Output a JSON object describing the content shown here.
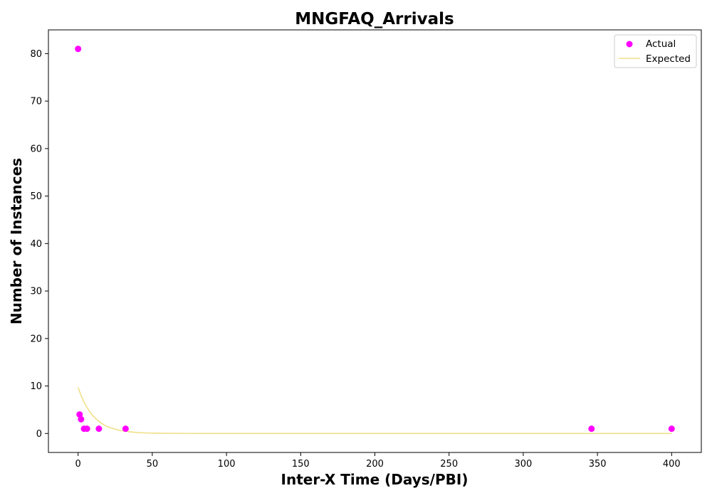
{
  "chart_data": {
    "type": "scatter",
    "title": "MNGFAQ_Arrivals",
    "xlabel": "Inter-X Time (Days/PBI)",
    "ylabel": "Number of Instances",
    "xlim": [
      -20,
      420
    ],
    "ylim": [
      -4,
      85
    ],
    "x_ticks": [
      0,
      50,
      100,
      150,
      200,
      250,
      300,
      350,
      400
    ],
    "y_ticks": [
      0,
      10,
      20,
      30,
      40,
      50,
      60,
      70,
      80
    ],
    "grid": false,
    "legend_position": "top-right",
    "series": [
      {
        "name": "Actual",
        "kind": "scatter",
        "color": "#ff00ff",
        "points": [
          [
            0,
            81
          ],
          [
            1,
            4
          ],
          [
            2,
            3
          ],
          [
            4,
            1
          ],
          [
            6,
            1
          ],
          [
            14,
            1
          ],
          [
            32,
            1
          ],
          [
            346,
            1
          ],
          [
            400,
            1
          ]
        ]
      },
      {
        "name": "Expected",
        "kind": "line",
        "color": "#f0e08a",
        "points": [
          [
            0,
            9.7
          ],
          [
            2,
            8.0
          ],
          [
            4,
            6.6
          ],
          [
            6,
            5.5
          ],
          [
            8,
            4.5
          ],
          [
            10,
            3.7
          ],
          [
            12,
            3.1
          ],
          [
            15,
            2.3
          ],
          [
            18,
            1.7
          ],
          [
            20,
            1.4
          ],
          [
            25,
            0.9
          ],
          [
            30,
            0.55
          ],
          [
            35,
            0.33
          ],
          [
            40,
            0.2
          ],
          [
            45,
            0.12
          ],
          [
            50,
            0.07
          ],
          [
            60,
            0.03
          ],
          [
            70,
            0.01
          ],
          [
            80,
            0
          ],
          [
            100,
            0
          ],
          [
            150,
            0
          ],
          [
            200,
            0
          ],
          [
            250,
            0
          ],
          [
            300,
            0
          ],
          [
            350,
            0
          ],
          [
            400,
            0
          ]
        ]
      }
    ]
  }
}
